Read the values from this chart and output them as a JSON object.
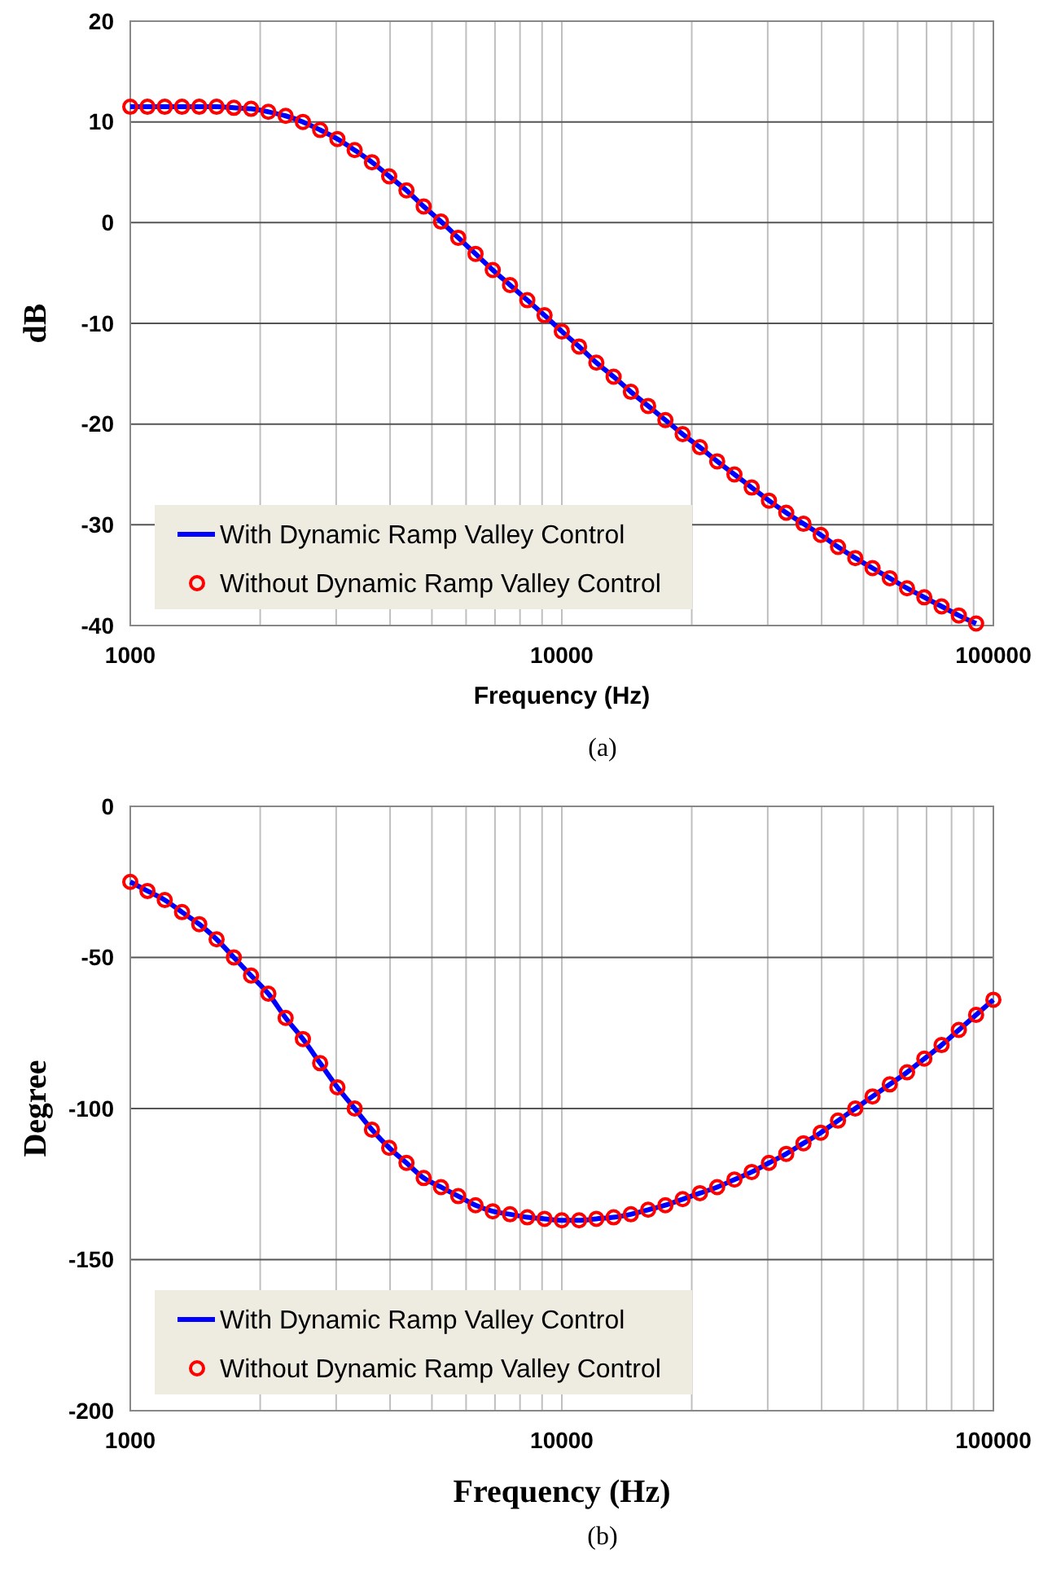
{
  "chart_data": [
    {
      "type": "line",
      "xlabel": "Frequency (Hz)",
      "ylabel": "dB",
      "log": "x",
      "grid": true,
      "legend": "bottom left",
      "xlim": [
        1000,
        100000
      ],
      "xticks": [
        1000,
        10000,
        100000
      ],
      "ylim": [
        -40,
        20
      ],
      "yticks": [
        -40,
        -30,
        -20,
        -10,
        0,
        10,
        20
      ],
      "annotations": [
        "(a)"
      ],
      "x": [
        1000,
        1096,
        1202,
        1318,
        1445,
        1585,
        1738,
        1905,
        2089,
        2291,
        2512,
        2754,
        3020,
        3311,
        3631,
        3981,
        4365,
        4786,
        5248,
        5754,
        6310,
        6918,
        7586,
        8318,
        9120,
        10000,
        10965,
        12023,
        13183,
        14454,
        15849,
        17378,
        19055,
        20893,
        22909,
        25119,
        27542,
        30200,
        33113,
        36308,
        39811,
        43652,
        47863,
        52481,
        57544,
        63096,
        69183,
        75858,
        83176,
        91201
      ],
      "series": [
        {
          "name": "With Dynamic Ramp Valley Control",
          "color": "#0000ff",
          "values": [
            11.5,
            11.5,
            11.5,
            11.5,
            11.5,
            11.5,
            11.4,
            11.3,
            11.0,
            10.6,
            10.0,
            9.2,
            8.3,
            7.2,
            6.0,
            4.6,
            3.2,
            1.6,
            0.1,
            -1.5,
            -3.1,
            -4.7,
            -6.2,
            -7.7,
            -9.2,
            -10.8,
            -12.3,
            -13.9,
            -15.3,
            -16.8,
            -18.2,
            -19.6,
            -21.0,
            -22.3,
            -23.7,
            -25.0,
            -26.3,
            -27.6,
            -28.8,
            -29.9,
            -31.0,
            -32.2,
            -33.3,
            -34.3,
            -35.3,
            -36.3,
            -37.2,
            -38.1,
            -39.0,
            -39.8
          ]
        },
        {
          "name": "Without Dynamic Ramp Valley Control",
          "type": "scatter",
          "color": "#ff0000",
          "marker": "circle",
          "values": [
            11.5,
            11.5,
            11.5,
            11.5,
            11.5,
            11.5,
            11.4,
            11.3,
            11.0,
            10.6,
            10.0,
            9.2,
            8.3,
            7.2,
            6.0,
            4.6,
            3.2,
            1.6,
            0.1,
            -1.5,
            -3.1,
            -4.7,
            -6.2,
            -7.7,
            -9.2,
            -10.8,
            -12.3,
            -13.9,
            -15.3,
            -16.8,
            -18.2,
            -19.6,
            -21.0,
            -22.3,
            -23.7,
            -25.0,
            -26.3,
            -27.6,
            -28.8,
            -29.9,
            -31.0,
            -32.2,
            -33.3,
            -34.3,
            -35.3,
            -36.3,
            -37.2,
            -38.1,
            -39.0,
            -39.8
          ]
        }
      ]
    },
    {
      "type": "line",
      "xlabel": "Frequency (Hz)",
      "ylabel": "Degree",
      "log": "x",
      "grid": true,
      "legend": "bottom left",
      "xlim": [
        1000,
        100000
      ],
      "xticks": [
        1000,
        10000,
        100000
      ],
      "ylim": [
        -200,
        0
      ],
      "yticks": [
        -200,
        -150,
        -100,
        -50,
        0
      ],
      "annotations": [
        "(b)"
      ],
      "x": [
        1000,
        1096,
        1202,
        1318,
        1445,
        1585,
        1738,
        1905,
        2089,
        2291,
        2512,
        2754,
        3020,
        3311,
        3631,
        3981,
        4365,
        4786,
        5248,
        5754,
        6310,
        6918,
        7586,
        8318,
        9120,
        10000,
        10965,
        12023,
        13183,
        14454,
        15849,
        17378,
        19055,
        20893,
        22909,
        25119,
        27542,
        30200,
        33113,
        36308,
        39811,
        43652,
        47863,
        52481,
        57544,
        63096,
        69183,
        75858,
        83176,
        91201,
        100000
      ],
      "series": [
        {
          "name": "With Dynamic Ramp Valley Control",
          "color": "#0000ff",
          "values": [
            -25,
            -28,
            -31,
            -35,
            -39,
            -44,
            -50,
            -56,
            -62,
            -70,
            -77,
            -85,
            -93,
            -100,
            -107,
            -113,
            -118,
            -123,
            -126,
            -129,
            -132,
            -134,
            -135,
            -136,
            -136.5,
            -137,
            -137,
            -136.5,
            -136,
            -135,
            -133.5,
            -132,
            -130,
            -128,
            -126,
            -123.5,
            -121,
            -118,
            -115,
            -111.5,
            -108,
            -104,
            -100,
            -96,
            -92,
            -88,
            -83.5,
            -79,
            -74,
            -69,
            -64
          ]
        },
        {
          "name": "Without Dynamic Ramp Valley Control",
          "type": "scatter",
          "color": "#ff0000",
          "marker": "circle",
          "values": [
            -25,
            -28,
            -31,
            -35,
            -39,
            -44,
            -50,
            -56,
            -62,
            -70,
            -77,
            -85,
            -93,
            -100,
            -107,
            -113,
            -118,
            -123,
            -126,
            -129,
            -132,
            -134,
            -135,
            -136,
            -136.5,
            -137,
            -137,
            -136.5,
            -136,
            -135,
            -133.5,
            -132,
            -130,
            -128,
            -126,
            -123.5,
            -121,
            -118,
            -115,
            -111.5,
            -108,
            -104,
            -100,
            -96,
            -92,
            -88,
            -83.5,
            -79,
            -74,
            -69,
            -64
          ]
        }
      ]
    }
  ]
}
